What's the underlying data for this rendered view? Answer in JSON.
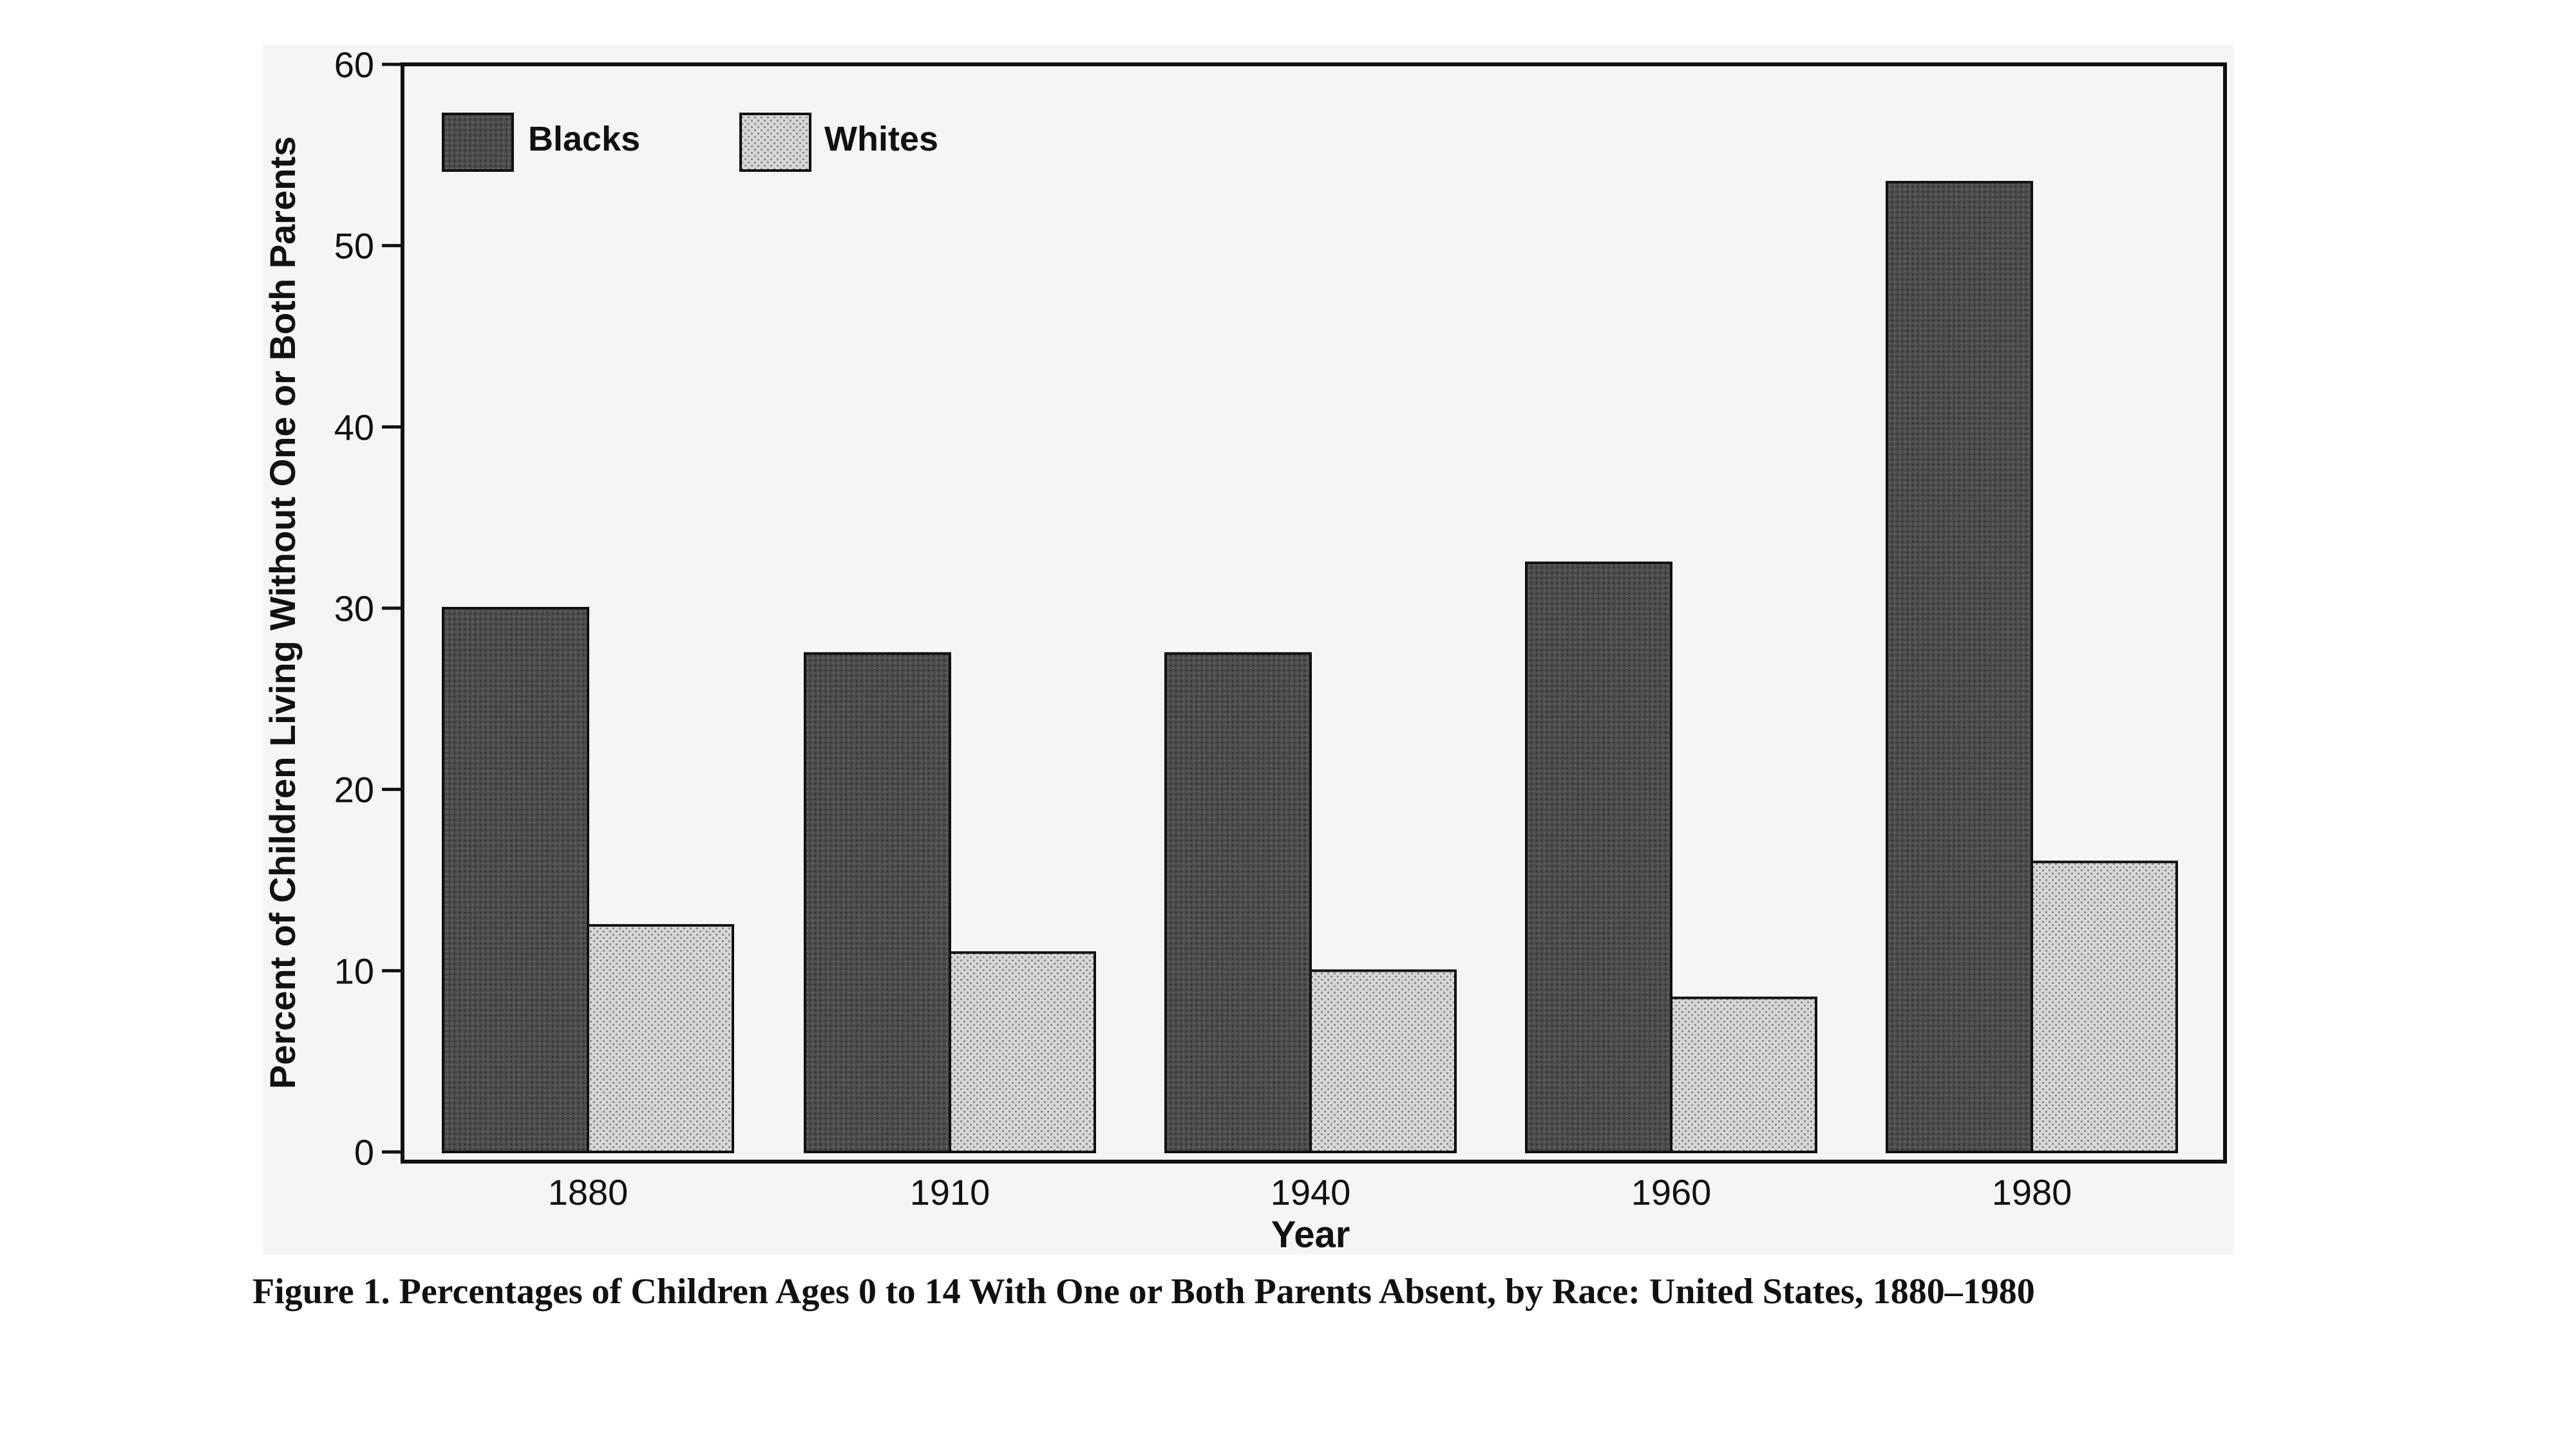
{
  "chart_data": {
    "type": "bar",
    "title": "",
    "xlabel": "Year",
    "ylabel": "Percent of Children Living Without One or Both Parents",
    "categories": [
      "1880",
      "1910",
      "1940",
      "1960",
      "1980"
    ],
    "ylim": [
      0,
      60
    ],
    "yticks": [
      0,
      10,
      20,
      30,
      40,
      50,
      60
    ],
    "grid": false,
    "legend_position": "top-left",
    "series": [
      {
        "name": "Blacks",
        "values": [
          30,
          27.5,
          27.5,
          32.5,
          53.5
        ],
        "color": "#4a4a4a"
      },
      {
        "name": "Whites",
        "values": [
          12.5,
          11,
          10,
          8.5,
          16
        ],
        "color": "#cfcfcf"
      }
    ]
  },
  "caption": "Figure 1. Percentages of Children Ages 0 to 14 With One or Both Parents Absent, by Race: United States, 1880–1980"
}
